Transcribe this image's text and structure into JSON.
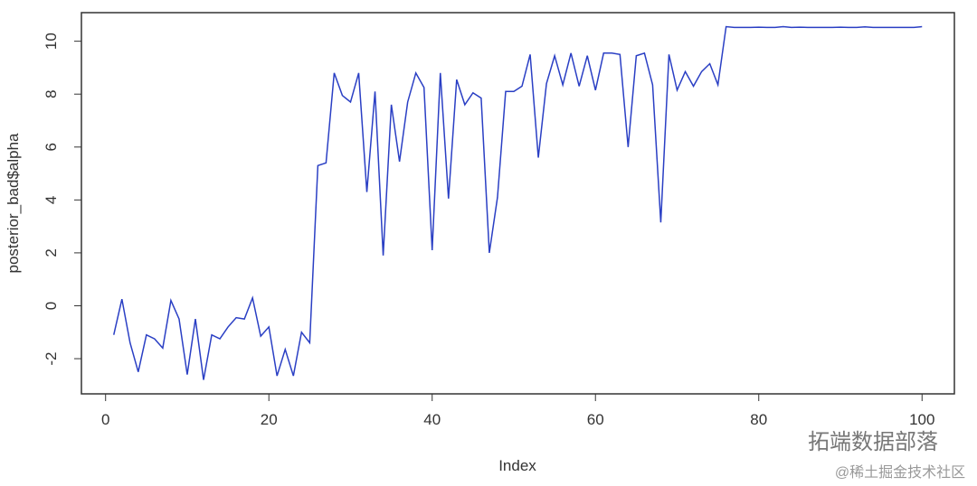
{
  "chart_data": {
    "type": "line",
    "xlabel": "Index",
    "ylabel": "posterior_bad$alpha",
    "x": [
      1,
      2,
      3,
      4,
      5,
      6,
      7,
      8,
      9,
      10,
      11,
      12,
      13,
      14,
      15,
      16,
      17,
      18,
      19,
      20,
      21,
      22,
      23,
      24,
      25,
      26,
      27,
      28,
      29,
      30,
      31,
      32,
      33,
      34,
      35,
      36,
      37,
      38,
      39,
      40,
      41,
      42,
      43,
      44,
      45,
      46,
      47,
      48,
      49,
      50,
      51,
      52,
      53,
      54,
      55,
      56,
      57,
      58,
      59,
      60,
      61,
      62,
      63,
      64,
      65,
      66,
      67,
      68,
      69,
      70,
      71,
      72,
      73,
      74,
      75,
      76,
      77,
      78,
      79,
      80,
      81,
      82,
      83,
      84,
      85,
      86,
      87,
      88,
      89,
      90,
      91,
      92,
      93,
      94,
      95,
      96,
      97,
      98,
      99,
      100
    ],
    "series": [
      {
        "color": "#2a3fc4",
        "values": [
          -1.1,
          0.25,
          -1.4,
          -2.5,
          -1.1,
          -1.25,
          -1.6,
          0.2,
          -0.5,
          -2.6,
          -0.5,
          -2.8,
          -1.1,
          -1.25,
          -0.8,
          -0.45,
          -0.5,
          0.3,
          -1.15,
          -0.8,
          -2.65,
          -1.65,
          -2.65,
          -1.0,
          -1.4,
          5.3,
          5.4,
          8.8,
          7.95,
          7.7,
          8.8,
          4.3,
          8.1,
          1.9,
          7.6,
          5.45,
          7.7,
          8.8,
          8.25,
          2.1,
          8.8,
          4.05,
          8.55,
          7.6,
          8.05,
          7.85,
          2.0,
          4.1,
          8.1,
          8.1,
          8.3,
          9.5,
          5.6,
          8.4,
          9.45,
          8.35,
          9.55,
          8.3,
          9.45,
          8.15,
          9.55,
          9.55,
          9.5,
          6.0,
          9.45,
          9.55,
          8.35,
          3.15,
          9.5,
          8.15,
          8.85,
          8.3,
          8.85,
          9.15,
          8.35,
          10.55,
          10.52,
          10.52,
          10.52,
          10.53,
          10.52,
          10.52,
          10.55,
          10.52,
          10.53,
          10.52,
          10.52,
          10.52,
          10.52,
          10.53,
          10.52,
          10.52,
          10.54,
          10.52,
          10.52,
          10.52,
          10.52,
          10.52,
          10.52,
          10.55
        ]
      }
    ],
    "xlim": [
      -2.96,
      103.96
    ],
    "xticks": [
      0,
      20,
      40,
      60,
      80,
      100
    ],
    "ylim": [
      -3.33,
      11.08
    ],
    "yticks": [
      -2,
      0,
      2,
      4,
      6,
      8,
      10
    ],
    "watermark": [
      "拓端数据部落",
      "@稀土掘金技术社区"
    ]
  }
}
